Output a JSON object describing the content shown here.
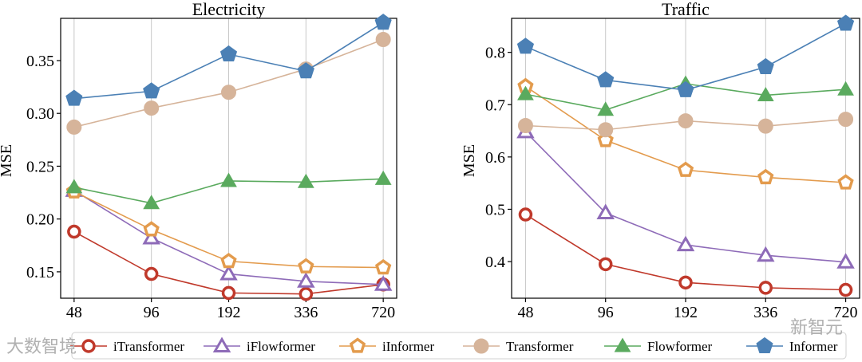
{
  "chart_data": [
    {
      "type": "line",
      "title": "Electricity",
      "xlabel": "",
      "ylabel": "MSE",
      "categories": [
        "48",
        "96",
        "192",
        "336",
        "720"
      ],
      "ylim": [
        0.125,
        0.39
      ],
      "yticks": [
        "0.15",
        "0.20",
        "0.25",
        "0.30",
        "0.35"
      ],
      "grid": "vertical",
      "series": [
        {
          "name": "iTransformer",
          "values": [
            0.188,
            0.148,
            0.13,
            0.129,
            0.138
          ]
        },
        {
          "name": "iFlowformer",
          "values": [
            0.227,
            0.182,
            0.148,
            0.141,
            0.138
          ]
        },
        {
          "name": "iInformer",
          "values": [
            0.226,
            0.19,
            0.16,
            0.155,
            0.154
          ]
        },
        {
          "name": "Transformer",
          "values": [
            0.287,
            0.305,
            0.32,
            0.342,
            0.37
          ]
        },
        {
          "name": "Flowformer",
          "values": [
            0.23,
            0.215,
            0.236,
            0.235,
            0.238
          ]
        },
        {
          "name": "Informer",
          "values": [
            0.314,
            0.321,
            0.356,
            0.34,
            0.386
          ]
        }
      ]
    },
    {
      "type": "line",
      "title": "Traffic",
      "xlabel": "",
      "ylabel": "MSE",
      "categories": [
        "48",
        "96",
        "192",
        "336",
        "720"
      ],
      "ylim": [
        0.33,
        0.865
      ],
      "yticks": [
        "0.4",
        "0.5",
        "0.6",
        "0.7",
        "0.8"
      ],
      "grid": "vertical",
      "series": [
        {
          "name": "iTransformer",
          "values": [
            0.49,
            0.395,
            0.36,
            0.35,
            0.346
          ]
        },
        {
          "name": "iFlowformer",
          "values": [
            0.648,
            0.493,
            0.432,
            0.412,
            0.399
          ]
        },
        {
          "name": "iInformer",
          "values": [
            0.735,
            0.632,
            0.575,
            0.561,
            0.551
          ]
        },
        {
          "name": "Transformer",
          "values": [
            0.66,
            0.652,
            0.669,
            0.659,
            0.672
          ]
        },
        {
          "name": "Flowformer",
          "values": [
            0.72,
            0.69,
            0.74,
            0.718,
            0.729
          ]
        },
        {
          "name": "Informer",
          "values": [
            0.811,
            0.747,
            0.728,
            0.772,
            0.855
          ]
        }
      ]
    }
  ],
  "style": {
    "series_colors": {
      "iTransformer": "#c0392b",
      "iFlowformer": "#8e6bb8",
      "iInformer": "#e39b4d",
      "Transformer": "#d6b49a",
      "Flowformer": "#5aaa5e",
      "Informer": "#4b80b5"
    },
    "series_markers": {
      "iTransformer": "hollow-circle",
      "iFlowformer": "hollow-triangle",
      "iInformer": "hollow-pentagon",
      "Transformer": "filled-circle",
      "Flowformer": "filled-triangle",
      "Informer": "filled-pentagon"
    }
  },
  "watermarks": {
    "left": "大数智境",
    "right": "新智元"
  }
}
